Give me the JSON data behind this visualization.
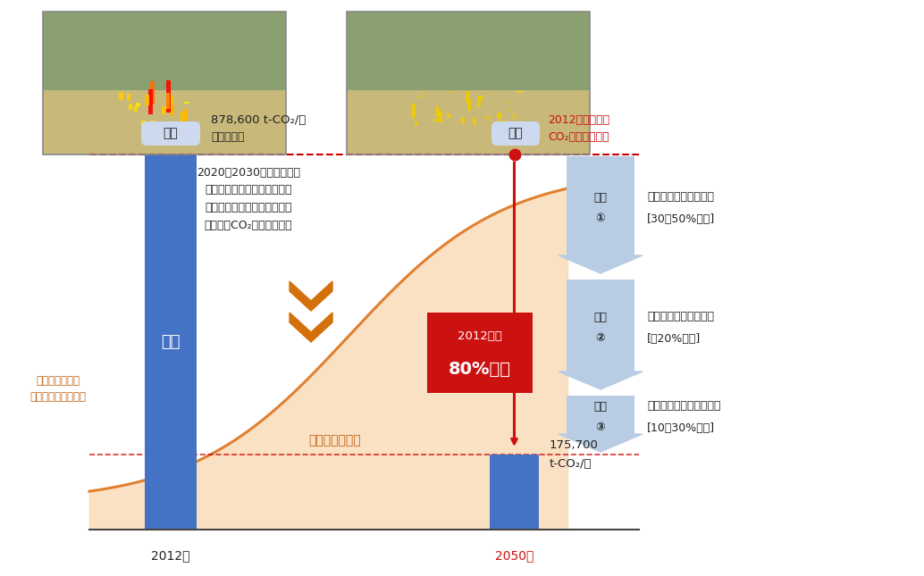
{
  "bg_color": "#ffffff",
  "bar_color": "#4472c4",
  "curve_fill_color": "#fad7b0",
  "dashed_line_color": "#cc0000",
  "label_2012": "2012年",
  "label_2050": "2050年",
  "value_2012": "878,600 t-CO₂/年",
  "value_2012_sub": "（計算値）",
  "value_2050_line1": "175,700",
  "value_2050_line2": "t-CO₂/年",
  "jitsu_label": "実績",
  "mokuhyo_label": "目標",
  "reduction_line1": "2012年比",
  "reduction_line2": "80%削減",
  "building_trend_label": "建物更新の動向\n（建替面積の累積）",
  "building_increase_label": "建物建替が急増",
  "current_label": "現在",
  "annotation_line1": "2020～2030年あたりの都",
  "annotation_line2": "心部の建替更新ピークに合わ",
  "annotation_line3": "せ、省エネ対策を行うことが",
  "annotation_line4": "効果的なCO₂削減へ繋がる",
  "reference_line1": "2012年の都心の",
  "reference_line2": "CO₂排出量を基準",
  "measure1_label": "建物の省エネルギー化",
  "measure1_sub": "[30～50%程度]",
  "measure2_label": "エネルギーの面的利用",
  "measure2_sub": "[～20%程度]",
  "measure3_label": "再生可能エネルギー利用",
  "measure3_sub": "[10～30%程度]",
  "taisaku1": "対策",
  "taisaku2": "対策",
  "taisaku3": "対策",
  "num1": "①",
  "num2": "②",
  "num3": "③",
  "arrow_color": "#b8cce4",
  "chevron_color": "#d4700a",
  "red_color": "#cc1111",
  "orange_curve_color": "#e08030",
  "dark_text": "#222222",
  "orange_text": "#c06010"
}
